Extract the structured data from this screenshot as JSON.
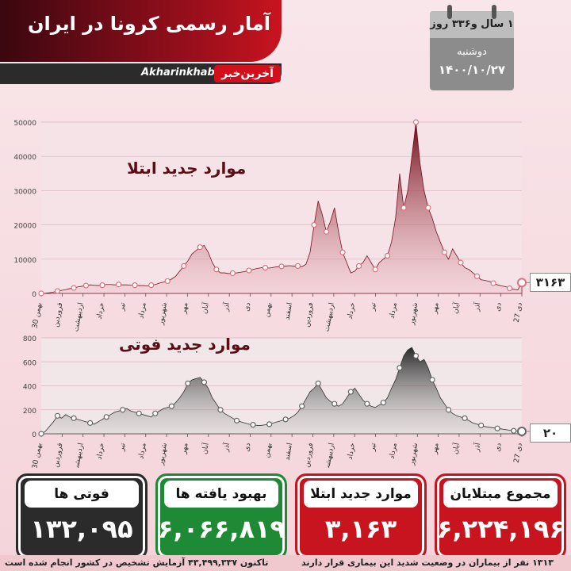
{
  "header": {
    "title": "آمار رسمی کرونا در ایران",
    "url": "Akharinkhabar.ir",
    "logo": "آخرین‌خبر"
  },
  "calendar": {
    "duration": "۱ سال و۳۳۶ روز",
    "weekday": "دوشنبه",
    "date": "۱۴۰۰/۱۰/۲۷"
  },
  "colors": {
    "accent": "#c8141f",
    "dark": "#3a0710",
    "green": "#1f8a35"
  },
  "chart_data": [
    {
      "type": "area",
      "title": "موارد جدید ابتلا",
      "ylim": [
        0,
        50000
      ],
      "yticks": [
        "0",
        "10000",
        "20000",
        "30000",
        "40000",
        "50000"
      ],
      "xticks": [
        "30 بهمن",
        "فروردین",
        "اردیبهشت",
        "خرداد",
        "تیر",
        "مرداد",
        "شهریور",
        "مهر",
        "آبان",
        "آذر",
        "دی",
        "بهمن",
        "اسفند",
        "فروردین",
        "اردیبهشت",
        "خرداد",
        "تیر",
        "مرداد",
        "شهریور",
        "مهر",
        "آبان",
        "آذر",
        "دی",
        "27 دی"
      ],
      "values": [
        0,
        50,
        200,
        400,
        700,
        900,
        1100,
        1400,
        1600,
        1900,
        2100,
        2300,
        2500,
        2400,
        2300,
        2400,
        2600,
        2600,
        2500,
        2600,
        2500,
        2500,
        2400,
        2400,
        2300,
        2300,
        2200,
        2400,
        2600,
        3000,
        3300,
        3600,
        4200,
        5000,
        6500,
        8000,
        9500,
        11500,
        12500,
        13500,
        14000,
        12000,
        9000,
        7000,
        6000,
        6000,
        5800,
        5900,
        6000,
        6200,
        6400,
        6700,
        7000,
        7300,
        7500,
        7500,
        7400,
        7600,
        7800,
        7900,
        8000,
        8100,
        8000,
        8000,
        7800,
        8500,
        12000,
        20000,
        27000,
        23000,
        18000,
        21000,
        25000,
        18000,
        12000,
        9000,
        6000,
        6500,
        8000,
        9000,
        11000,
        9000,
        7000,
        9000,
        10000,
        11000,
        15000,
        22000,
        35000,
        25000,
        30000,
        40000,
        50000,
        38000,
        30000,
        25000,
        22000,
        18000,
        15000,
        12000,
        10000,
        13000,
        11000,
        9000,
        7500,
        7000,
        6000,
        5000,
        4000,
        3800,
        3500,
        3000,
        2500,
        2200,
        2000,
        1500,
        1200,
        1000,
        3163
      ],
      "markers": [
        0,
        4,
        8,
        11,
        15,
        19,
        23,
        27,
        31,
        35,
        39,
        43,
        47,
        51,
        55,
        59,
        63,
        67,
        70,
        74,
        78,
        82,
        85,
        89,
        92,
        95,
        99,
        103,
        107,
        111,
        115,
        120
      ],
      "callout": "۳۱۶۳"
    },
    {
      "type": "area",
      "title": "موارد جدید فوتی",
      "ylim": [
        0,
        800
      ],
      "yticks": [
        "0",
        "200",
        "400",
        "600",
        "800"
      ],
      "xticks": [
        "30 بهمن",
        "فروردین",
        "اردیبهشت",
        "خرداد",
        "تیر",
        "مرداد",
        "شهریور",
        "مهر",
        "آبان",
        "آذر",
        "دی",
        "بهمن",
        "اسفند",
        "فروردین",
        "اردیبهشت",
        "خرداد",
        "تیر",
        "مرداد",
        "شهریور",
        "مهر",
        "آبان",
        "آذر",
        "دی",
        "27 دی"
      ],
      "values": [
        0,
        20,
        60,
        100,
        150,
        130,
        160,
        140,
        130,
        120,
        110,
        100,
        90,
        80,
        100,
        120,
        140,
        160,
        180,
        190,
        200,
        210,
        190,
        180,
        170,
        160,
        150,
        140,
        170,
        190,
        210,
        220,
        230,
        260,
        300,
        350,
        420,
        450,
        460,
        470,
        430,
        380,
        300,
        250,
        200,
        170,
        150,
        130,
        110,
        100,
        90,
        80,
        75,
        70,
        70,
        75,
        80,
        90,
        100,
        110,
        120,
        130,
        150,
        180,
        230,
        290,
        350,
        380,
        420,
        360,
        300,
        270,
        250,
        230,
        250,
        300,
        350,
        380,
        330,
        280,
        250,
        230,
        220,
        240,
        260,
        300,
        380,
        450,
        550,
        650,
        700,
        720,
        650,
        600,
        620,
        550,
        450,
        380,
        300,
        250,
        200,
        170,
        150,
        140,
        130,
        110,
        90,
        80,
        70,
        60,
        55,
        50,
        45,
        40,
        35,
        30,
        25,
        22,
        20
      ],
      "markers": [
        0,
        4,
        8,
        12,
        16,
        20,
        24,
        28,
        32,
        36,
        40,
        44,
        48,
        52,
        56,
        60,
        64,
        68,
        72,
        76,
        80,
        84,
        88,
        92,
        96,
        100,
        104,
        108,
        112,
        116,
        120
      ],
      "callout": "۲۰"
    }
  ],
  "cards": [
    {
      "label": "مجموع مبتلایان",
      "value": "۶,۲۲۴,۱۹۶",
      "bg": "#c8141f",
      "border": "#c8141f"
    },
    {
      "label": "موارد جدید ابتلا",
      "value": "۳,۱۶۳",
      "bg": "#c8141f",
      "border": "#c8141f"
    },
    {
      "label": "بهبود یافته ها",
      "value": "۶,۰۶۶,۸۱۹",
      "bg": "#1f8a35",
      "border": "#1f8a35"
    },
    {
      "label": "فوتی ها",
      "value": "۱۳۲,۰۹۵",
      "bg": "#2b2b2b",
      "border": "#2b2b2b"
    }
  ],
  "footer": {
    "critical": "۱۳۱۳ نفر از بیماران در وضعیت شدید این بیماری قرار دارند",
    "tests": "تاکنون ۴۳,۴۹۹,۳۳۷ آزمایش تشخیص در کشور انجام شده است"
  }
}
